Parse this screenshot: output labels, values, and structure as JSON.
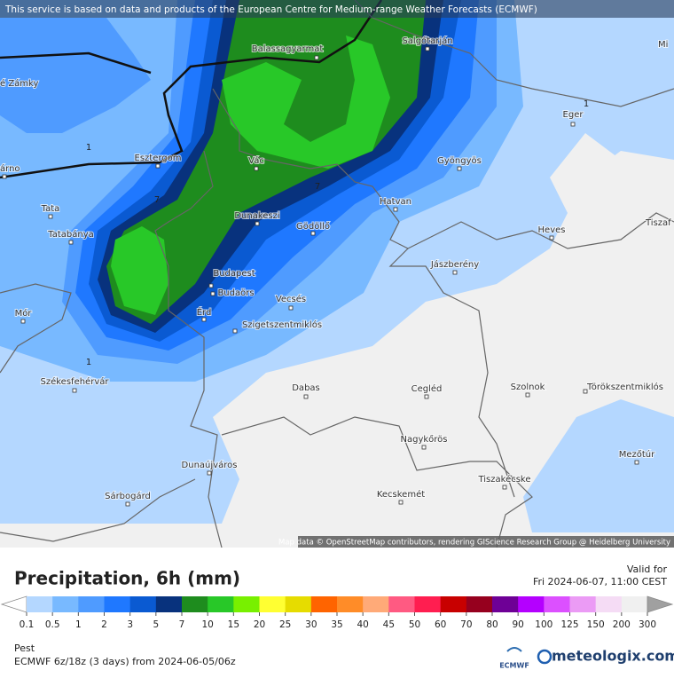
{
  "header": {
    "notice": "This service is based on data and products of the European Centre for Medium-range Weather Forecasts (ECMWF)"
  },
  "map": {
    "cities": [
      "é Zámky",
      "Balassagyarmat",
      "Salgótarján",
      "Mi",
      "Eger",
      "Esztergom",
      "árno",
      "Vác",
      "Gyöngyös",
      "Tata",
      "Dunakeszi",
      "Hatvan",
      "Gödöllő",
      "Tatabánya",
      "Heves",
      "Tiszaf",
      "Jászberény",
      "Budapest",
      "Budaörs",
      "Vecsés",
      "Mór",
      "Érd",
      "Szigetszentmiklós",
      "Székesfehérvár",
      "Dabas",
      "Cegléd",
      "Szolnok",
      "Törökszentmiklós",
      "Nagykőrös",
      "Mezőtúr",
      "Dunaújváros",
      "Tiszakécske",
      "Kecskemét",
      "Sárbogárd"
    ],
    "contour_labels": [
      "1",
      "1",
      "1",
      "7",
      "7"
    ],
    "attribution": "Map data © OpenStreetMap contributors, rendering GIScience Research Group @ Heidelberg University"
  },
  "legend": {
    "title": "Precipitation, 6h (mm)",
    "valid_label": "Valid for",
    "valid_time": "Fri 2024-06-07, 11:00 CEST",
    "ticks": [
      0.1,
      0.5,
      1,
      2,
      3,
      5,
      7,
      10,
      15,
      20,
      25,
      30,
      35,
      40,
      45,
      50,
      60,
      70,
      80,
      90,
      100,
      125,
      150,
      200,
      300
    ],
    "colors": [
      "#ffffff",
      "#b4d7ff",
      "#78b9ff",
      "#4f9bff",
      "#1f78ff",
      "#0a5ad2",
      "#08327d",
      "#1e8c1e",
      "#28c828",
      "#78f000",
      "#ffff32",
      "#e6dc00",
      "#ff6400",
      "#ff8c28",
      "#ffaa78",
      "#ff5a82",
      "#ff1e50",
      "#c80000",
      "#96001e",
      "#6e0096",
      "#b400ff",
      "#dc50ff",
      "#eb9bf5",
      "#f5dcf5",
      "#f0f0f0",
      "#d2d2d2",
      "#a0a0a0"
    ]
  },
  "footer": {
    "region": "Pest",
    "model_run": "ECMWF 6z/18z (3 days) from  2024-06-05/06z"
  },
  "logos": {
    "ecmwf": "ECMWF",
    "brand": "meteologix.com"
  }
}
